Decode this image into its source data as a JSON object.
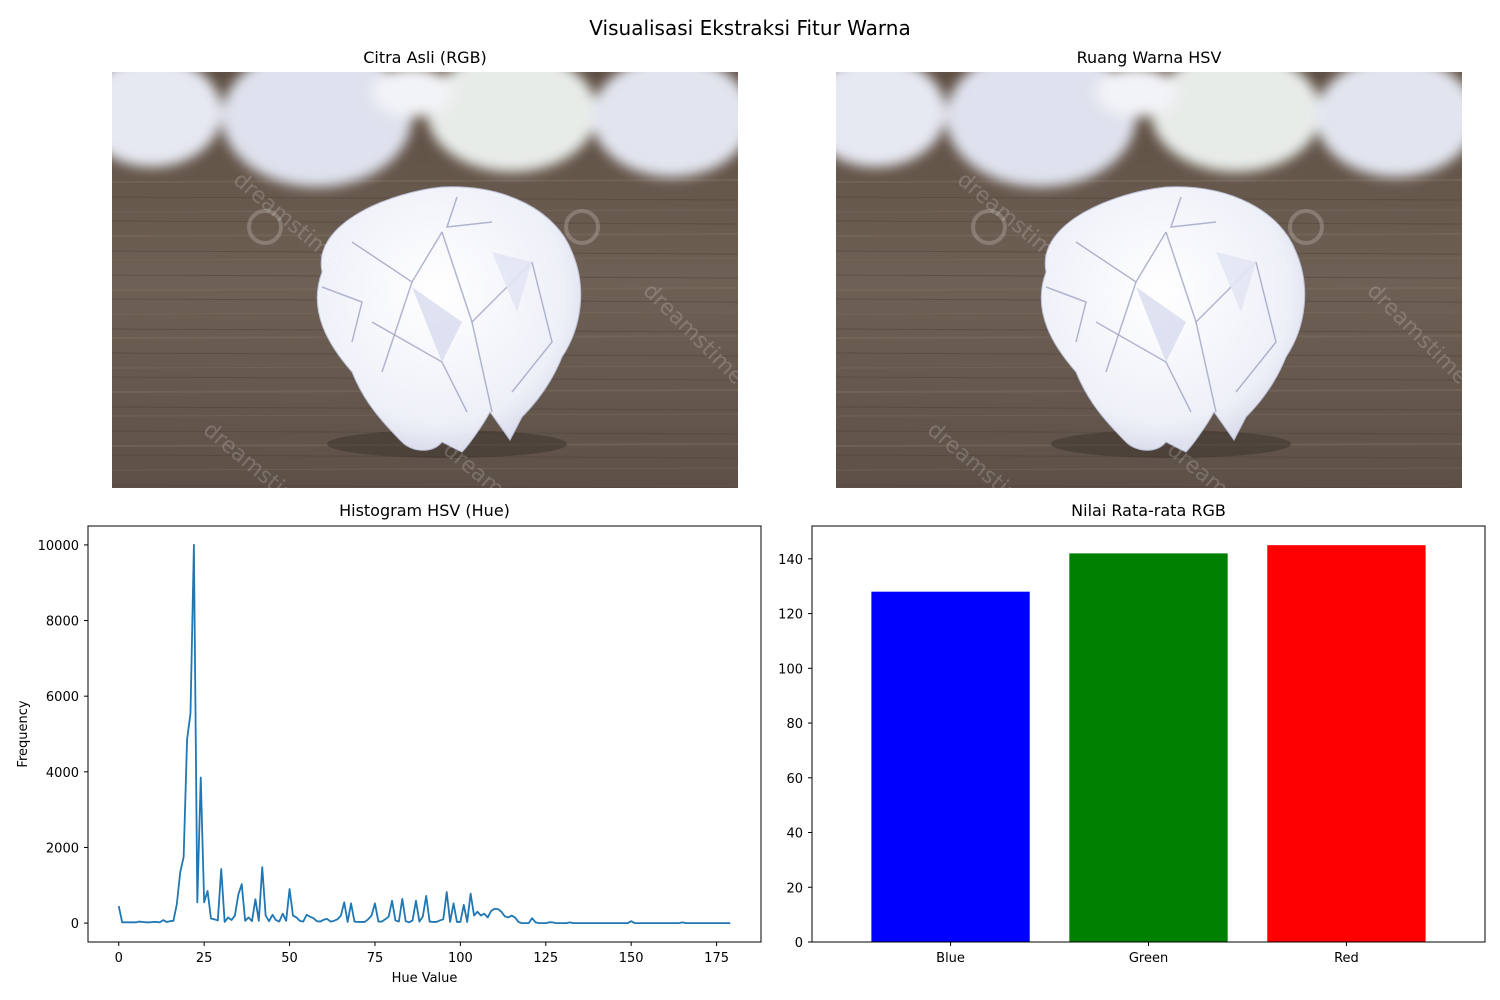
{
  "figure": {
    "title": "Visualisasi Ekstraksi Fitur Warna"
  },
  "panels": {
    "rgb_image": {
      "title": "Citra Asli (RGB)",
      "watermark": "dreamstime"
    },
    "hsv_image": {
      "title": "Ruang Warna HSV",
      "watermark": "dreamstime"
    }
  },
  "chart_data": [
    {
      "type": "line",
      "title": "Histogram HSV (Hue)",
      "xlabel": "Hue Value",
      "ylabel": "Frequency",
      "xlim": [
        -9,
        188
      ],
      "ylim": [
        -500,
        10500
      ],
      "xticks": [
        0,
        25,
        50,
        75,
        100,
        125,
        150,
        175
      ],
      "yticks": [
        0,
        2000,
        4000,
        6000,
        8000,
        10000
      ],
      "color": "#1f77b4",
      "grid": false,
      "x": [
        0,
        1,
        2,
        3,
        4,
        5,
        6,
        7,
        8,
        9,
        10,
        11,
        12,
        13,
        14,
        15,
        16,
        17,
        18,
        19,
        20,
        21,
        22,
        23,
        24,
        25,
        26,
        27,
        28,
        29,
        30,
        31,
        32,
        33,
        34,
        35,
        36,
        37,
        38,
        39,
        40,
        41,
        42,
        43,
        44,
        45,
        46,
        47,
        48,
        49,
        50,
        51,
        52,
        53,
        54,
        55,
        56,
        57,
        58,
        59,
        60,
        61,
        62,
        63,
        64,
        65,
        66,
        67,
        68,
        69,
        70,
        71,
        72,
        73,
        74,
        75,
        76,
        77,
        78,
        79,
        80,
        81,
        82,
        83,
        84,
        85,
        86,
        87,
        88,
        89,
        90,
        91,
        92,
        93,
        94,
        95,
        96,
        97,
        98,
        99,
        100,
        101,
        102,
        103,
        104,
        105,
        106,
        107,
        108,
        109,
        110,
        111,
        112,
        113,
        114,
        115,
        116,
        117,
        118,
        119,
        120,
        121,
        122,
        123,
        124,
        125,
        126,
        127,
        128,
        129,
        130,
        131,
        132,
        133,
        134,
        135,
        136,
        137,
        138,
        139,
        140,
        141,
        142,
        143,
        144,
        145,
        146,
        147,
        148,
        149,
        150,
        151,
        152,
        153,
        154,
        155,
        156,
        157,
        158,
        159,
        160,
        161,
        162,
        163,
        164,
        165,
        166,
        167,
        168,
        169,
        170,
        171,
        172,
        173,
        174,
        175,
        176,
        177,
        178,
        179
      ],
      "y": [
        450,
        20,
        20,
        20,
        20,
        20,
        40,
        30,
        20,
        20,
        30,
        30,
        20,
        80,
        30,
        50,
        60,
        500,
        1350,
        1750,
        4850,
        5550,
        10000,
        550,
        3850,
        550,
        850,
        120,
        100,
        70,
        1430,
        30,
        150,
        80,
        200,
        750,
        1030,
        60,
        150,
        50,
        630,
        60,
        1480,
        200,
        50,
        220,
        80,
        40,
        250,
        60,
        900,
        200,
        150,
        60,
        40,
        220,
        170,
        130,
        50,
        40,
        90,
        110,
        40,
        60,
        100,
        190,
        550,
        30,
        520,
        40,
        30,
        30,
        30,
        100,
        200,
        520,
        40,
        40,
        100,
        170,
        590,
        70,
        40,
        640,
        50,
        20,
        70,
        590,
        40,
        170,
        720,
        40,
        30,
        30,
        70,
        100,
        820,
        30,
        520,
        30,
        30,
        480,
        30,
        780,
        200,
        300,
        200,
        250,
        150,
        320,
        380,
        370,
        300,
        180,
        150,
        200,
        150,
        30,
        0,
        0,
        0,
        130,
        20,
        0,
        0,
        0,
        20,
        20,
        0,
        0,
        0,
        0,
        20,
        0,
        0,
        0,
        0,
        0,
        0,
        0,
        0,
        0,
        0,
        0,
        0,
        0,
        0,
        0,
        0,
        0,
        50,
        0,
        0,
        0,
        0,
        0,
        0,
        0,
        0,
        0,
        0,
        0,
        0,
        0,
        0,
        20,
        0,
        0,
        0,
        0,
        0,
        0,
        0,
        0,
        0,
        0,
        0,
        0,
        0,
        0
      ]
    },
    {
      "type": "bar",
      "title": "Nilai Rata-rata RGB",
      "categories": [
        "Blue",
        "Green",
        "Red"
      ],
      "values": [
        128,
        142,
        145
      ],
      "colors": [
        "#0000ff",
        "#008000",
        "#ff0000"
      ],
      "ylim": [
        0,
        152
      ],
      "yticks": [
        0,
        20,
        40,
        60,
        80,
        100,
        120,
        140
      ],
      "xlabel": "",
      "ylabel": "",
      "grid": false
    }
  ]
}
